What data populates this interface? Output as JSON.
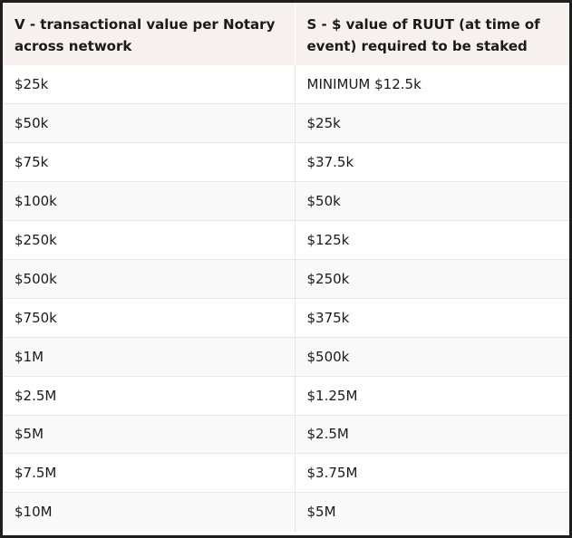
{
  "table": {
    "headers": [
      "V - transactional value per Notary across network",
      "S - $ value of RUUT (at time of event) required to be staked"
    ],
    "rows": [
      [
        "$25k",
        "MINIMUM $12.5k"
      ],
      [
        "$50k",
        "$25k"
      ],
      [
        "$75k",
        "$37.5k"
      ],
      [
        "$100k",
        "$50k"
      ],
      [
        "$250k",
        "$125k"
      ],
      [
        "$500k",
        "$250k"
      ],
      [
        "$750k",
        "$375k"
      ],
      [
        "$1M",
        "$500k"
      ],
      [
        "$2.5M",
        "$1.25M"
      ],
      [
        "$5M",
        "$2.5M"
      ],
      [
        "$7.5M",
        "$3.75M"
      ],
      [
        "$10M",
        "$5M"
      ]
    ]
  },
  "colors": {
    "header_background": "#f6f0ef",
    "row_background": "#ffffff",
    "row_alt_background": "#f9f9f9",
    "frame_border": "#1e1e1e",
    "text": "#1a1a1a"
  }
}
